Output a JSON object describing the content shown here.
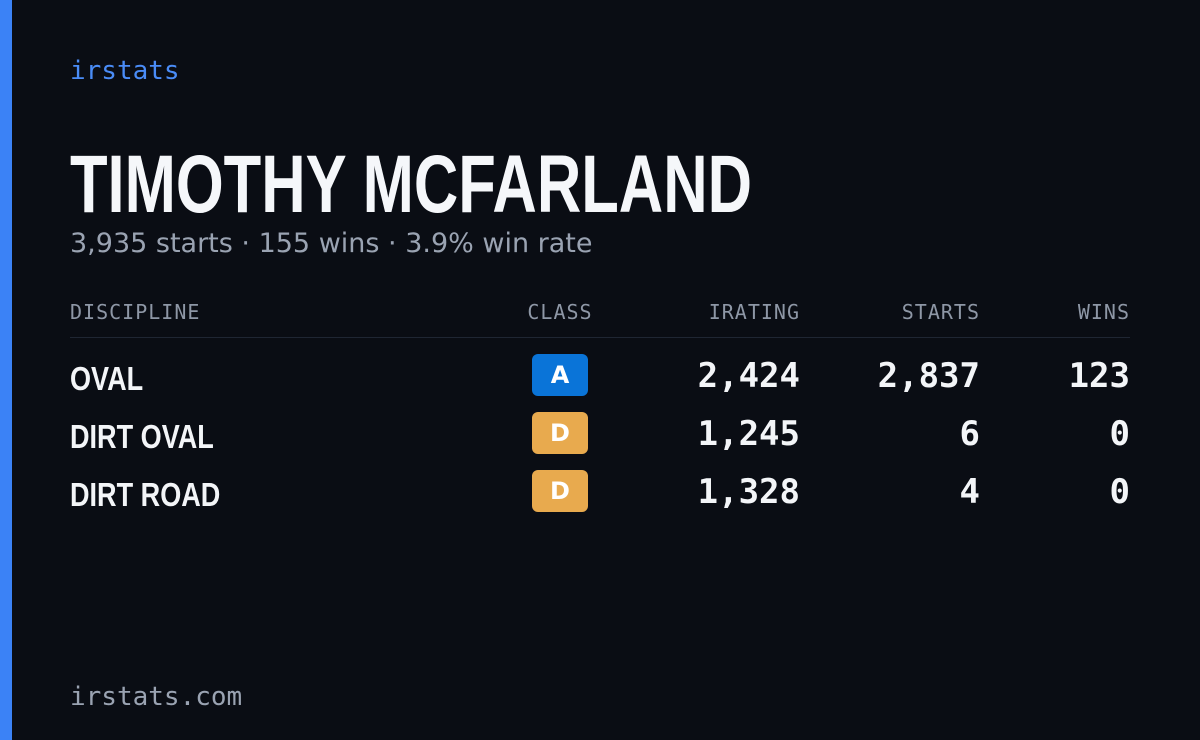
{
  "header": {
    "brand": "irstats",
    "name": "TIMOTHY MCFARLAND",
    "summary": "3,935 starts · 155 wins · 3.9% win rate"
  },
  "table": {
    "columns": [
      "DISCIPLINE",
      "CLASS",
      "IRATING",
      "STARTS",
      "WINS"
    ],
    "rows": [
      {
        "discipline": "OVAL",
        "class": "A",
        "class_color": "#0a74d8",
        "irating": "2,424",
        "starts": "2,837",
        "wins": "123"
      },
      {
        "discipline": "DIRT OVAL",
        "class": "D",
        "class_color": "#e8aa4e",
        "irating": "1,245",
        "starts": "6",
        "wins": "0"
      },
      {
        "discipline": "DIRT ROAD",
        "class": "D",
        "class_color": "#e8aa4e",
        "irating": "1,328",
        "starts": "4",
        "wins": "0"
      }
    ]
  },
  "footer": {
    "site": "irstats.com"
  }
}
